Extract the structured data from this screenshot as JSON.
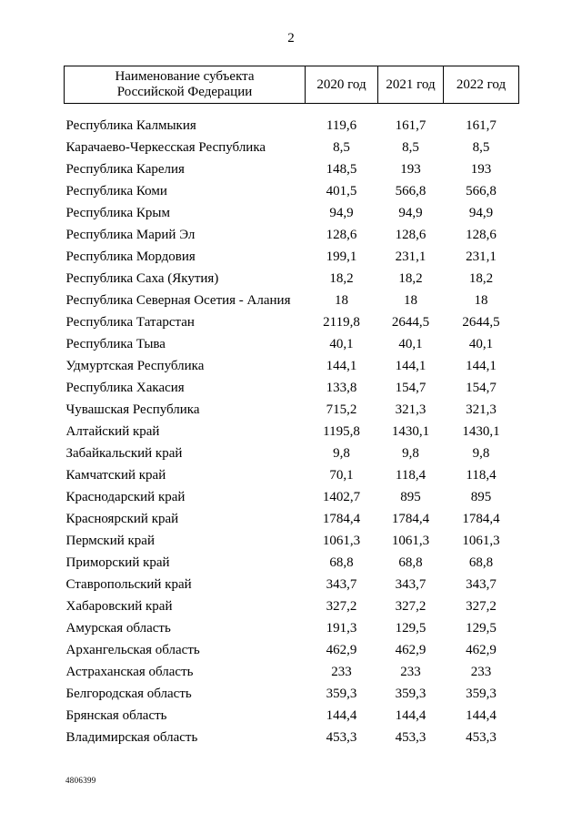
{
  "page_number": "2",
  "footer_code": "4806399",
  "table": {
    "header": {
      "name": "Наименование субъекта Российской Федерации",
      "y2020": "2020 год",
      "y2021": "2021 год",
      "y2022": "2022 год"
    },
    "rows": [
      [
        "Республика Калмыкия",
        "119,6",
        "161,7",
        "161,7"
      ],
      [
        "Карачаево-Черкесская Республика",
        "8,5",
        "8,5",
        "8,5"
      ],
      [
        "Республика Карелия",
        "148,5",
        "193",
        "193"
      ],
      [
        "Республика Коми",
        "401,5",
        "566,8",
        "566,8"
      ],
      [
        "Республика Крым",
        "94,9",
        "94,9",
        "94,9"
      ],
      [
        "Республика Марий Эл",
        "128,6",
        "128,6",
        "128,6"
      ],
      [
        "Республика Мордовия",
        "199,1",
        "231,1",
        "231,1"
      ],
      [
        "Республика Саха (Якутия)",
        "18,2",
        "18,2",
        "18,2"
      ],
      [
        "Республика Северная Осетия - Алания",
        "18",
        "18",
        "18"
      ],
      [
        "Республика Татарстан",
        "2119,8",
        "2644,5",
        "2644,5"
      ],
      [
        "Республика Тыва",
        "40,1",
        "40,1",
        "40,1"
      ],
      [
        "Удмуртская Республика",
        "144,1",
        "144,1",
        "144,1"
      ],
      [
        "Республика Хакасия",
        "133,8",
        "154,7",
        "154,7"
      ],
      [
        "Чувашская Республика",
        "715,2",
        "321,3",
        "321,3"
      ],
      [
        "Алтайский край",
        "1195,8",
        "1430,1",
        "1430,1"
      ],
      [
        "Забайкальский край",
        "9,8",
        "9,8",
        "9,8"
      ],
      [
        "Камчатский край",
        "70,1",
        "118,4",
        "118,4"
      ],
      [
        "Краснодарский край",
        "1402,7",
        "895",
        "895"
      ],
      [
        "Красноярский край",
        "1784,4",
        "1784,4",
        "1784,4"
      ],
      [
        "Пермский край",
        "1061,3",
        "1061,3",
        "1061,3"
      ],
      [
        "Приморский край",
        "68,8",
        "68,8",
        "68,8"
      ],
      [
        "Ставропольский край",
        "343,7",
        "343,7",
        "343,7"
      ],
      [
        "Хабаровский край",
        "327,2",
        "327,2",
        "327,2"
      ],
      [
        "Амурская область",
        "191,3",
        "129,5",
        "129,5"
      ],
      [
        "Архангельская область",
        "462,9",
        "462,9",
        "462,9"
      ],
      [
        "Астраханская область",
        "233",
        "233",
        "233"
      ],
      [
        "Белгородская область",
        "359,3",
        "359,3",
        "359,3"
      ],
      [
        "Брянская область",
        "144,4",
        "144,4",
        "144,4"
      ],
      [
        "Владимирская область",
        "453,3",
        "453,3",
        "453,3"
      ]
    ]
  }
}
